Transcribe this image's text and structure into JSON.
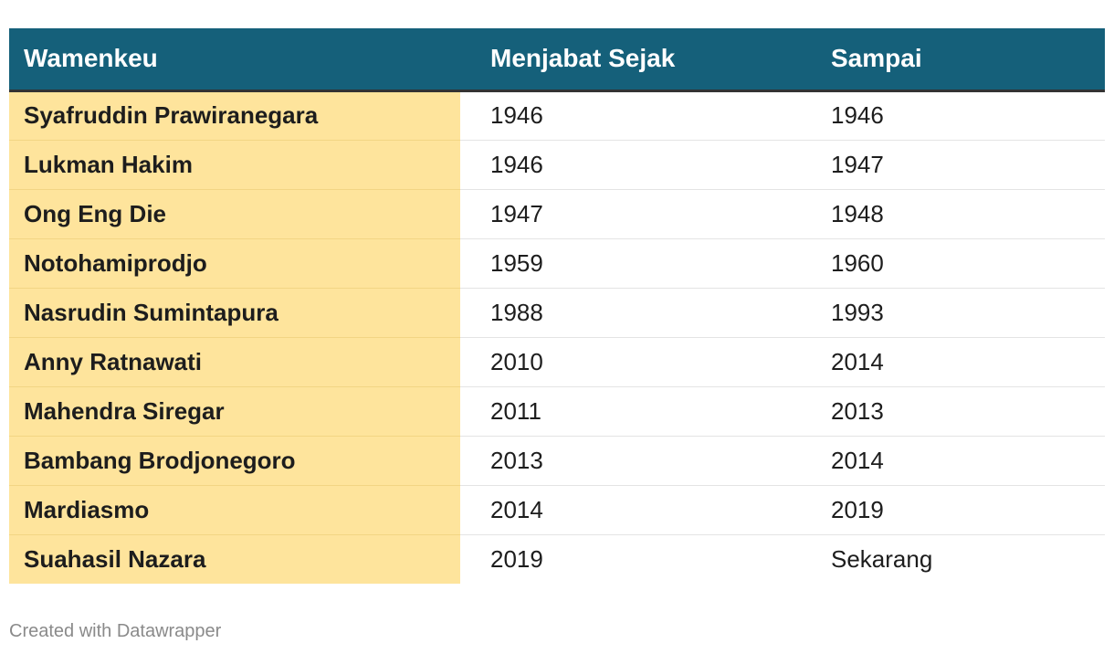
{
  "chart_data": {
    "type": "table",
    "columns": [
      "Wamenkeu",
      "Menjabat Sejak",
      "Sampai"
    ],
    "rows": [
      [
        "Syafruddin Prawiranegara",
        "1946",
        "1946"
      ],
      [
        "Lukman Hakim",
        "1946",
        "1947"
      ],
      [
        "Ong Eng Die",
        "1947",
        "1948"
      ],
      [
        "Notohamiprodjo",
        "1959",
        "1960"
      ],
      [
        "Nasrudin Sumintapura",
        "1988",
        "1993"
      ],
      [
        "Anny Ratnawati",
        "2010",
        "2014"
      ],
      [
        "Mahendra Siregar",
        "2011",
        "2013"
      ],
      [
        "Bambang Brodjonegoro",
        "2013",
        "2014"
      ],
      [
        "Mardiasmo",
        "2014",
        "2019"
      ],
      [
        "Suahasil Nazara",
        "2019",
        "Sekarang"
      ]
    ]
  },
  "footer": {
    "credit": "Created with Datawrapper"
  },
  "colors": {
    "header_bg": "#15607a",
    "highlight_column": "#fee49c"
  }
}
